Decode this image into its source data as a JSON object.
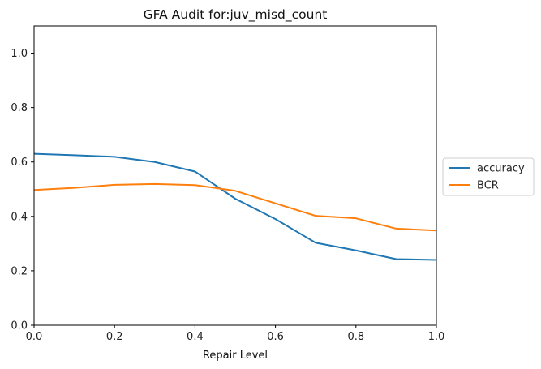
{
  "chart_data": {
    "type": "line",
    "title": "GFA Audit for:juv_misd_count",
    "xlabel": "Repair Level",
    "ylabel": "",
    "xlim": [
      0.0,
      1.0
    ],
    "ylim": [
      0.0,
      1.1
    ],
    "xticks": [
      "0.0",
      "0.2",
      "0.4",
      "0.6",
      "0.8",
      "1.0"
    ],
    "yticks": [
      "0.0",
      "0.2",
      "0.4",
      "0.6",
      "0.8",
      "1.0"
    ],
    "grid": false,
    "legend_position": "center-right outside",
    "x": [
      0.0,
      0.1,
      0.2,
      0.3,
      0.4,
      0.5,
      0.6,
      0.7,
      0.8,
      0.9,
      1.0
    ],
    "series": [
      {
        "name": "accuracy",
        "color": "#1f77b4",
        "values": [
          0.63,
          0.625,
          0.619,
          0.6,
          0.565,
          0.465,
          0.39,
          0.303,
          0.275,
          0.243,
          0.24
        ]
      },
      {
        "name": "BCR",
        "color": "#ff7f0e",
        "values": [
          0.497,
          0.505,
          0.516,
          0.519,
          0.515,
          0.494,
          0.448,
          0.402,
          0.393,
          0.355,
          0.348
        ]
      }
    ]
  }
}
